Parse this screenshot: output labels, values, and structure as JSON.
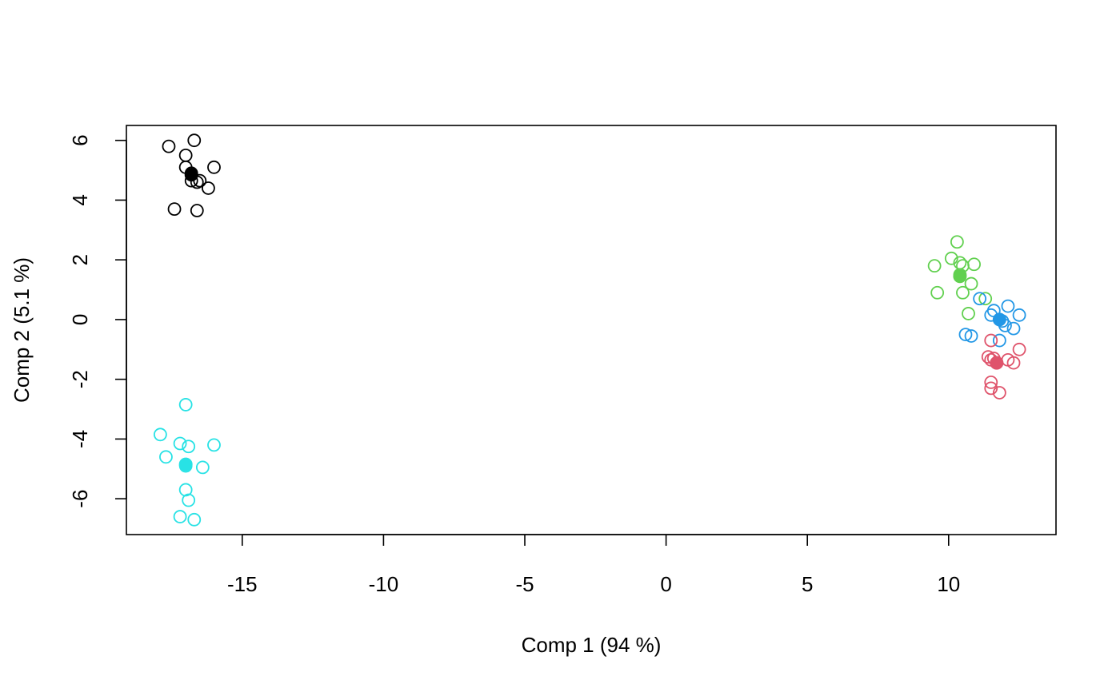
{
  "chart_data": {
    "type": "scatter",
    "title": "",
    "xlabel": "Comp 1 (94 %)",
    "ylabel": "Comp 2 (5.1 %)",
    "xlim": [
      -19.1,
      13.8
    ],
    "ylim": [
      -7.2,
      6.5
    ],
    "x_ticks": [
      -15,
      -10,
      -5,
      0,
      5,
      10
    ],
    "x_tick_labels": [
      "-15",
      "-10",
      "-5",
      "0",
      "5",
      "10"
    ],
    "y_ticks": [
      -6,
      -4,
      -2,
      0,
      2,
      4,
      6
    ],
    "y_tick_labels": [
      "-6",
      "-4",
      "-2",
      "0",
      "2",
      "4",
      "6"
    ],
    "grid": false,
    "legend": "none",
    "series": [
      {
        "color": "#000000",
        "points": [
          [
            -17.6,
            5.8
          ],
          [
            -16.7,
            6.0
          ],
          [
            -17.0,
            5.5
          ],
          [
            -17.0,
            5.1
          ],
          [
            -16.0,
            5.1
          ],
          [
            -16.8,
            4.9
          ],
          [
            -16.8,
            4.65
          ],
          [
            -16.6,
            4.6
          ],
          [
            -16.5,
            4.65
          ],
          [
            -16.2,
            4.4
          ],
          [
            -17.4,
            3.7
          ],
          [
            -16.6,
            3.65
          ]
        ],
        "centroid": [
          -16.8,
          4.85
        ]
      },
      {
        "color": "#61D04F",
        "points": [
          [
            10.3,
            2.6
          ],
          [
            10.1,
            2.05
          ],
          [
            10.4,
            1.9
          ],
          [
            10.9,
            1.85
          ],
          [
            9.5,
            1.8
          ],
          [
            10.5,
            1.8
          ],
          [
            10.4,
            1.5
          ],
          [
            10.8,
            1.2
          ],
          [
            9.6,
            0.9
          ],
          [
            10.5,
            0.9
          ],
          [
            11.3,
            0.7
          ],
          [
            10.7,
            0.2
          ]
        ],
        "centroid": [
          10.4,
          1.45
        ]
      },
      {
        "color": "#2297E6",
        "points": [
          [
            11.1,
            0.7
          ],
          [
            12.1,
            0.45
          ],
          [
            11.6,
            0.3
          ],
          [
            11.5,
            0.15
          ],
          [
            12.5,
            0.15
          ],
          [
            11.9,
            -0.05
          ],
          [
            12.0,
            -0.2
          ],
          [
            12.3,
            -0.3
          ],
          [
            10.6,
            -0.5
          ],
          [
            10.8,
            -0.55
          ],
          [
            11.8,
            -0.7
          ]
        ],
        "centroid": [
          11.8,
          0.0
        ]
      },
      {
        "color": "#DF536B",
        "points": [
          [
            11.5,
            -0.7
          ],
          [
            12.5,
            -1.0
          ],
          [
            11.4,
            -1.25
          ],
          [
            11.6,
            -1.3
          ],
          [
            11.5,
            -1.35
          ],
          [
            12.1,
            -1.35
          ],
          [
            12.3,
            -1.45
          ],
          [
            11.7,
            -1.45
          ],
          [
            11.5,
            -2.1
          ],
          [
            11.5,
            -2.3
          ],
          [
            11.8,
            -2.45
          ]
        ],
        "centroid": [
          11.7,
          -1.45
        ]
      },
      {
        "color": "#28E2E5",
        "points": [
          [
            -17.0,
            -2.85
          ],
          [
            -17.9,
            -3.85
          ],
          [
            -17.2,
            -4.15
          ],
          [
            -16.9,
            -4.25
          ],
          [
            -16.0,
            -4.2
          ],
          [
            -17.7,
            -4.6
          ],
          [
            -17.0,
            -4.9
          ],
          [
            -16.4,
            -4.95
          ],
          [
            -17.0,
            -5.7
          ],
          [
            -16.9,
            -6.05
          ],
          [
            -17.2,
            -6.6
          ],
          [
            -16.7,
            -6.7
          ]
        ],
        "centroid": [
          -17.0,
          -4.85
        ]
      }
    ]
  }
}
